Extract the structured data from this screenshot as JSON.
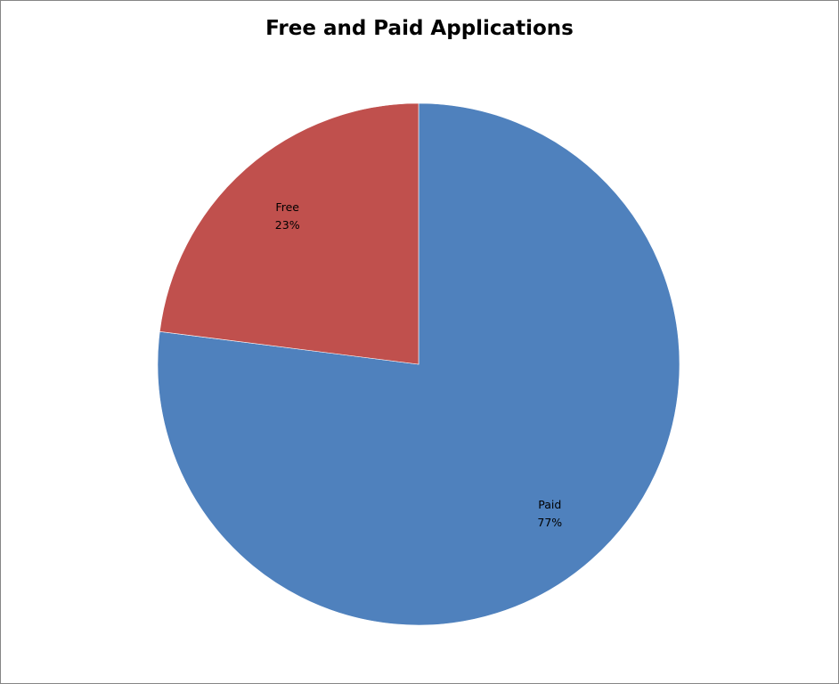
{
  "chart_data": {
    "type": "pie",
    "title": "Free and Paid Applications",
    "start_angle_deg": 0,
    "direction": "clockwise",
    "slices": [
      {
        "category": "Paid",
        "value": 77,
        "percent_label": "77%",
        "color": "#4F81BD"
      },
      {
        "category": "Free",
        "value": 23,
        "percent_label": "23%",
        "color": "#C0504D"
      }
    ],
    "legend": "none",
    "data_labels": "category and percent, inside slices"
  }
}
